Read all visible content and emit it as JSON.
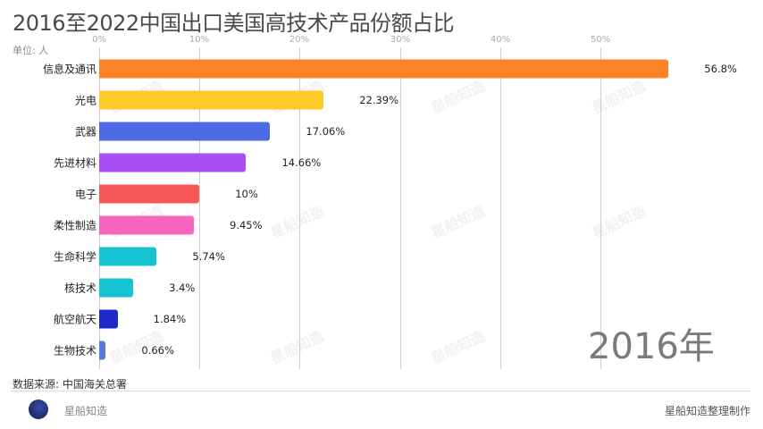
{
  "header": {
    "title": "2016至2022中国出口美国高技术产品份额占比",
    "unit": "单位: 人"
  },
  "axis": {
    "ticks": [
      "0%",
      "10%",
      "20%",
      "30%",
      "40%",
      "50%"
    ]
  },
  "year_label": "2016年",
  "footer": {
    "source": "数据来源: 中国海关总署",
    "logo_text": "星船知造",
    "credit": "星船知造整理制作"
  },
  "watermark": "星船知造",
  "rows": [
    {
      "label": "信息及通讯",
      "value": "56.8%",
      "color": "#fa8227"
    },
    {
      "label": "光电",
      "value": "22.39%",
      "color": "#fccb2a"
    },
    {
      "label": "武器",
      "value": "17.06%",
      "color": "#4b6ae3"
    },
    {
      "label": "先进材料",
      "value": "14.66%",
      "color": "#a74ff5"
    },
    {
      "label": "电子",
      "value": "10%",
      "color": "#f75757"
    },
    {
      "label": "柔性制造",
      "value": "9.45%",
      "color": "#f765bf"
    },
    {
      "label": "生命科学",
      "value": "5.74%",
      "color": "#16c3d1"
    },
    {
      "label": "核技术",
      "value": "3.4%",
      "color": "#16c3d1"
    },
    {
      "label": "航空航天",
      "value": "1.84%",
      "color": "#1c2bc7"
    },
    {
      "label": "生物技术",
      "value": "0.66%",
      "color": "#5a7ae0"
    }
  ],
  "chart_data": {
    "type": "bar",
    "orientation": "horizontal",
    "title": "2016至2022中国出口美国高技术产品份额占比",
    "subtitle": "单位: 人",
    "frame_label": "2016年",
    "categories": [
      "信息及通讯",
      "光电",
      "武器",
      "先进材料",
      "电子",
      "柔性制造",
      "生命科学",
      "核技术",
      "航空航天",
      "生物技术"
    ],
    "values": [
      56.8,
      22.39,
      17.06,
      14.66,
      10,
      9.45,
      5.74,
      3.4,
      1.84,
      0.66
    ],
    "xlabel": "",
    "ylabel": "",
    "xlim": [
      0,
      57
    ],
    "x_ticks": [
      "0%",
      "10%",
      "20%",
      "30%",
      "40%",
      "50%"
    ],
    "grid": true,
    "legend": null,
    "source": "数据来源: 中国海关总署"
  }
}
